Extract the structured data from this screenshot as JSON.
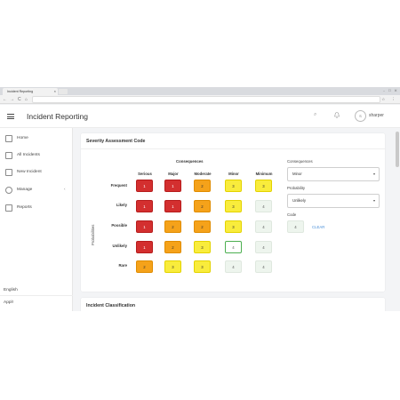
{
  "browser": {
    "tab_title": "Incident Reporting",
    "tab_close": "×",
    "window_controls": "⎯ ☐ ✕",
    "nav_back": "←",
    "nav_forward": "→",
    "nav_reload": "C",
    "nav_home": "⌂",
    "nav_right_icons": "☆ ⋮"
  },
  "header": {
    "title": "Incident Reporting",
    "search_icon": "⌕",
    "bell_icon": "🔔",
    "avatar_initial": "S",
    "username": "sharper"
  },
  "sidebar": {
    "items": [
      {
        "label": "Home",
        "icon": "home-icon"
      },
      {
        "label": "All Incidents",
        "icon": "list-icon"
      },
      {
        "label": "New Incident",
        "icon": "edit-icon"
      },
      {
        "label": "Manage",
        "icon": "gear-icon",
        "chevron": "‹"
      },
      {
        "label": "Reports",
        "icon": "chart-icon"
      }
    ],
    "language": "English",
    "footer_item": "Appl!"
  },
  "severity_card": {
    "title": "Severity Assessment Code",
    "consequences_header": "Consequences",
    "probabilities_axis": "Probabilities",
    "columns": [
      "Serious",
      "Major",
      "Moderate",
      "Minor",
      "Minimum"
    ],
    "rows": [
      {
        "label": "Frequent",
        "cells": [
          1,
          1,
          2,
          3,
          3
        ]
      },
      {
        "label": "Likely",
        "cells": [
          1,
          1,
          2,
          3,
          4
        ]
      },
      {
        "label": "Possible",
        "cells": [
          1,
          2,
          2,
          3,
          4
        ]
      },
      {
        "label": "Unlikely",
        "cells": [
          1,
          2,
          3,
          4,
          4
        ]
      },
      {
        "label": "Rare",
        "cells": [
          2,
          3,
          3,
          4,
          4
        ]
      }
    ],
    "selected": {
      "row": 3,
      "col": 3
    },
    "form": {
      "consequences_label": "Consequences",
      "consequences_value": "Minor",
      "probability_label": "Probability",
      "probability_value": "Unlikely",
      "code_label": "Code",
      "code_value": "4",
      "clear_label": "CLEAR",
      "dropdown_arrow": "▾"
    },
    "colors": {
      "level1": "#d32f2f",
      "level2": "#f5a21a",
      "level3": "#f9ec3c",
      "level4": "#eef5ee",
      "selected_border": "#4caf50"
    }
  },
  "classification_card": {
    "title": "Incident Classification"
  }
}
